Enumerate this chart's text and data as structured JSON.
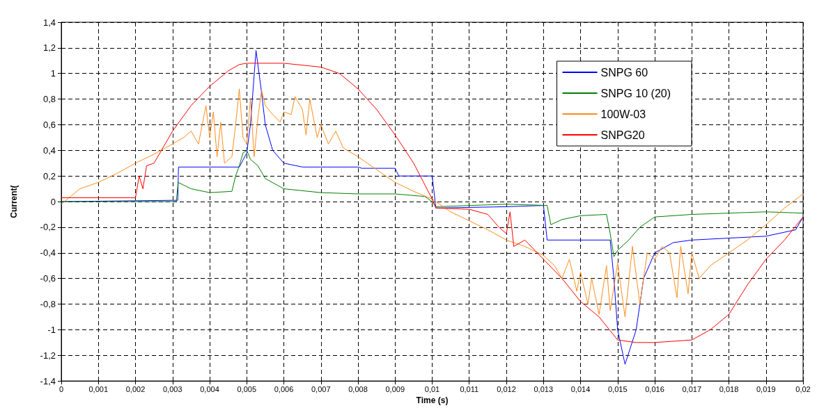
{
  "chart_data": {
    "type": "line",
    "xlabel": "Time (s)",
    "ylabel": "Current(",
    "grid": true,
    "legend": "top right",
    "xlim": [
      0,
      0.02
    ],
    "ylim": [
      -1.4,
      1.4
    ],
    "xticks": [
      0,
      {
        "value": 0.001,
        "label": "0,001"
      },
      {
        "value": 0.002,
        "label": "0,002"
      },
      {
        "value": 0.003,
        "label": "0,003"
      },
      {
        "value": 0.004,
        "label": "0,004"
      },
      {
        "value": 0.005,
        "label": "0,005"
      },
      {
        "value": 0.006,
        "label": "0,006"
      },
      {
        "value": 0.007,
        "label": "0,007"
      },
      {
        "value": 0.008,
        "label": "0,008"
      },
      {
        "value": 0.009,
        "label": "0,009"
      },
      {
        "value": 0.01,
        "label": "0,01"
      },
      {
        "value": 0.011,
        "label": "0,011"
      },
      {
        "value": 0.012,
        "label": "0,012"
      },
      {
        "value": 0.013,
        "label": "0,013"
      },
      {
        "value": 0.014,
        "label": "0,014"
      },
      {
        "value": 0.015,
        "label": "0,015"
      },
      {
        "value": 0.016,
        "label": "0,016"
      },
      {
        "value": 0.017,
        "label": "0,017"
      },
      {
        "value": 0.018,
        "label": "0,018"
      },
      {
        "value": 0.019,
        "label": "0,019"
      },
      {
        "value": 0.02,
        "label": "0,02"
      }
    ],
    "yticks": [
      {
        "value": -1.4,
        "label": "-1,4"
      },
      {
        "value": -1.2,
        "label": "-1,2"
      },
      -1,
      {
        "value": -0.8,
        "label": "-0,8"
      },
      {
        "value": -0.6,
        "label": "-0,6"
      },
      {
        "value": -0.4,
        "label": "-0,4"
      },
      {
        "value": -0.2,
        "label": "-0,2"
      },
      0,
      {
        "value": 0.2,
        "label": "0,2"
      },
      {
        "value": 0.4,
        "label": "0,4"
      },
      {
        "value": 0.6,
        "label": "0,6"
      },
      {
        "value": 0.8,
        "label": "0,8"
      },
      1,
      {
        "value": 1.2,
        "label": "1,2"
      },
      {
        "value": 1.4,
        "label": "1,4"
      }
    ],
    "series": [
      {
        "name": "SNPG 60",
        "color": "#0000ff",
        "x": [
          0,
          0.003,
          0.00314,
          0.00316,
          0.0048,
          0.005,
          0.0051,
          0.00525,
          0.0054,
          0.0055,
          0.0057,
          0.006,
          0.0065,
          0.008,
          0.0081,
          0.009,
          0.0091,
          0.01,
          0.0101,
          0.012,
          0.013,
          0.0131,
          0.0148,
          0.0149,
          0.015,
          0.0152,
          0.0155,
          0.0157,
          0.016,
          0.0165,
          0.017,
          0.019,
          0.0198,
          0.02
        ],
        "values": [
          0,
          0.01,
          0.01,
          0.27,
          0.27,
          0.38,
          0.6,
          1.18,
          0.85,
          0.6,
          0.4,
          0.3,
          0.27,
          0.27,
          0.26,
          0.26,
          0.2,
          0.2,
          -0.05,
          -0.04,
          -0.03,
          -0.3,
          -0.3,
          -0.6,
          -1.0,
          -1.27,
          -1.0,
          -0.6,
          -0.4,
          -0.32,
          -0.3,
          -0.27,
          -0.22,
          -0.12
        ]
      },
      {
        "name": "SNPG 10 (20)",
        "color": "#008000",
        "x": [
          0,
          0.0031,
          0.00315,
          0.0035,
          0.004,
          0.0046,
          0.0047,
          0.0048,
          0.0049,
          0.005,
          0.0051,
          0.0053,
          0.0055,
          0.006,
          0.007,
          0.008,
          0.009,
          0.0098,
          0.01,
          0.0101,
          0.012,
          0.0131,
          0.0132,
          0.0135,
          0.014,
          0.0147,
          0.0148,
          0.0149,
          0.015,
          0.0153,
          0.0156,
          0.016,
          0.017,
          0.018,
          0.019,
          0.02
        ],
        "values": [
          0,
          0,
          0.15,
          0.1,
          0.07,
          0.08,
          0.2,
          0.28,
          0.38,
          0.4,
          0.33,
          0.28,
          0.18,
          0.1,
          0.07,
          0.06,
          0.06,
          0.04,
          0,
          -0.04,
          -0.02,
          -0.03,
          -0.18,
          -0.14,
          -0.11,
          -0.1,
          -0.25,
          -0.43,
          -0.38,
          -0.3,
          -0.2,
          -0.12,
          -0.1,
          -0.09,
          -0.08,
          -0.09
        ]
      },
      {
        "name": "100W-03",
        "color": "#ff8c1a",
        "x": [
          0,
          0.0005,
          0.001,
          0.0015,
          0.002,
          0.0025,
          0.003,
          0.0033,
          0.0035,
          0.0037,
          0.0039,
          0.004,
          0.0041,
          0.0042,
          0.0043,
          0.0044,
          0.0046,
          0.0047,
          0.0048,
          0.0049,
          0.005,
          0.0051,
          0.0052,
          0.0053,
          0.0054,
          0.0055,
          0.0057,
          0.0059,
          0.006,
          0.0062,
          0.0063,
          0.0065,
          0.0066,
          0.0067,
          0.0069,
          0.007,
          0.0072,
          0.0074,
          0.0076,
          0.008,
          0.0085,
          0.009,
          0.0095,
          0.01,
          0.0105,
          0.011,
          0.0115,
          0.012,
          0.0125,
          0.013,
          0.0133,
          0.0135,
          0.0137,
          0.0139,
          0.014,
          0.0142,
          0.0143,
          0.0145,
          0.0147,
          0.0148,
          0.015,
          0.0152,
          0.0154,
          0.0156,
          0.0158,
          0.016,
          0.0162,
          0.0164,
          0.0166,
          0.0167,
          0.0169,
          0.017,
          0.0172,
          0.0175,
          0.018,
          0.0185,
          0.019,
          0.0195,
          0.02
        ],
        "values": [
          -0.02,
          0.1,
          0.15,
          0.22,
          0.3,
          0.37,
          0.45,
          0.5,
          0.55,
          0.45,
          0.75,
          0.5,
          0.7,
          0.35,
          0.62,
          0.3,
          0.35,
          0.6,
          0.88,
          0.5,
          0.45,
          0.8,
          0.35,
          0.65,
          0.87,
          0.75,
          0.68,
          0.62,
          0.7,
          0.68,
          0.82,
          0.72,
          0.52,
          0.8,
          0.5,
          0.6,
          0.45,
          0.55,
          0.42,
          0.35,
          0.25,
          0.15,
          0.08,
          0.02,
          -0.08,
          -0.15,
          -0.22,
          -0.3,
          -0.35,
          -0.42,
          -0.5,
          -0.6,
          -0.45,
          -0.7,
          -0.55,
          -0.8,
          -0.6,
          -0.88,
          -0.5,
          -0.85,
          -0.48,
          -0.9,
          -0.35,
          -0.8,
          -0.4,
          -0.45,
          -0.35,
          -0.4,
          -0.75,
          -0.35,
          -0.72,
          -0.4,
          -0.6,
          -0.5,
          -0.4,
          -0.3,
          -0.18,
          -0.05,
          0.06
        ]
      },
      {
        "name": "SNPG20",
        "color": "#ff0000",
        "x": [
          0,
          0.002,
          0.0021,
          0.0022,
          0.0023,
          0.0025,
          0.003,
          0.0035,
          0.004,
          0.0045,
          0.0048,
          0.005,
          0.006,
          0.007,
          0.0075,
          0.008,
          0.0085,
          0.009,
          0.0095,
          0.01,
          0.0101,
          0.011,
          0.0115,
          0.0118,
          0.012,
          0.0121,
          0.0122,
          0.0125,
          0.013,
          0.0135,
          0.014,
          0.0145,
          0.015,
          0.0155,
          0.016,
          0.017,
          0.0175,
          0.018,
          0.0185,
          0.019,
          0.0195,
          0.02
        ],
        "values": [
          0.03,
          0.03,
          0.2,
          0.1,
          0.28,
          0.3,
          0.55,
          0.75,
          0.9,
          1.02,
          1.07,
          1.08,
          1.08,
          1.05,
          1.0,
          0.88,
          0.72,
          0.52,
          0.3,
          0.02,
          -0.05,
          -0.06,
          -0.1,
          -0.2,
          -0.25,
          -0.08,
          -0.35,
          -0.3,
          -0.45,
          -0.6,
          -0.78,
          -0.9,
          -1.08,
          -1.1,
          -1.1,
          -1.08,
          -1.0,
          -0.88,
          -0.65,
          -0.45,
          -0.3,
          -0.12
        ]
      }
    ]
  }
}
